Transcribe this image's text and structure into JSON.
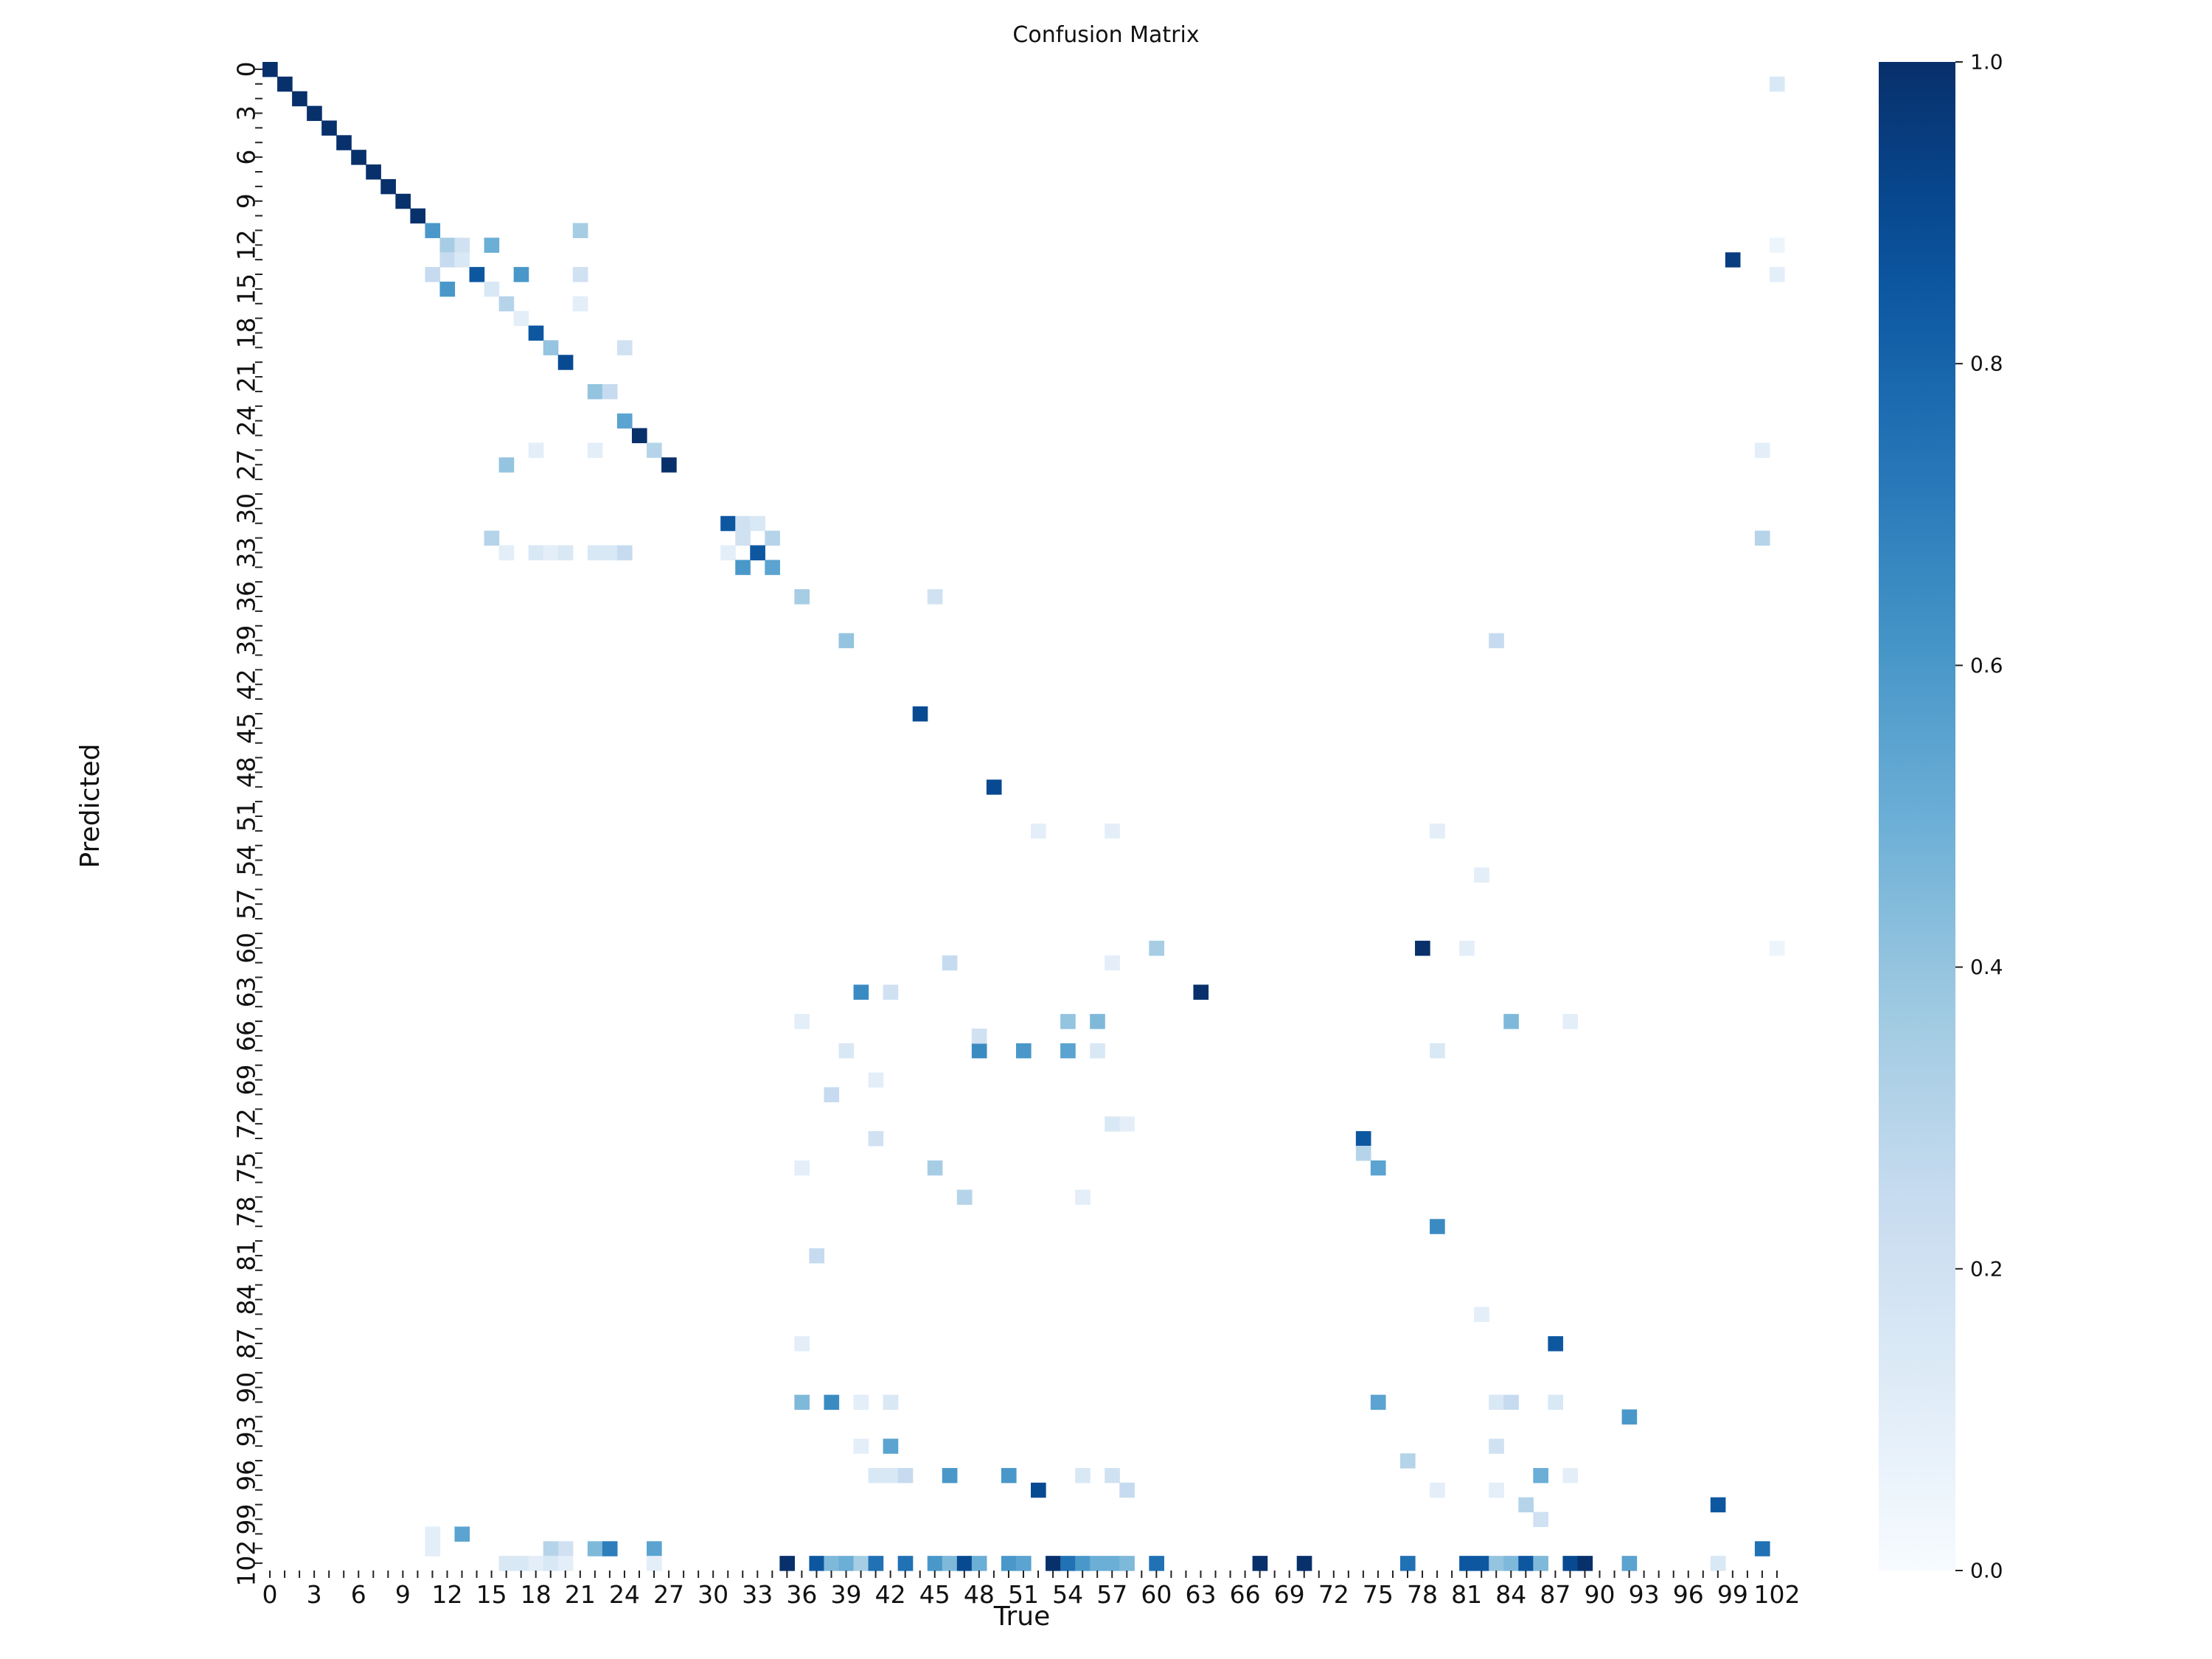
{
  "chart_data": {
    "type": "heatmap",
    "title": "Confusion Matrix",
    "xlabel": "True",
    "ylabel": "Predicted",
    "n": 103,
    "tick_step": 3,
    "x_tick_labels": [
      "0",
      "3",
      "6",
      "9",
      "12",
      "15",
      "18",
      "21",
      "24",
      "27",
      "30",
      "33",
      "36",
      "39",
      "42",
      "45",
      "48",
      "51",
      "54",
      "57",
      "60",
      "63",
      "66",
      "69",
      "72",
      "75",
      "78",
      "81",
      "84",
      "87",
      "90",
      "93",
      "96",
      "99",
      "102"
    ],
    "y_tick_labels": [
      "0",
      "3",
      "6",
      "9",
      "12",
      "15",
      "18",
      "21",
      "24",
      "27",
      "30",
      "33",
      "36",
      "39",
      "42",
      "45",
      "48",
      "51",
      "54",
      "57",
      "60",
      "63",
      "66",
      "69",
      "72",
      "75",
      "78",
      "81",
      "84",
      "87",
      "90",
      "93",
      "96",
      "99",
      "102"
    ],
    "colorbar": {
      "min": 0.0,
      "max": 1.0,
      "ticks": [
        "0.0",
        "0.2",
        "0.4",
        "0.6",
        "0.8",
        "1.0"
      ],
      "colormap": "Blues",
      "low_color": "#f7fbff",
      "high_color": "#08306b"
    },
    "cells": [
      [
        0,
        0,
        1.0
      ],
      [
        1,
        1,
        1.0
      ],
      [
        2,
        2,
        1.0
      ],
      [
        3,
        3,
        1.0
      ],
      [
        4,
        4,
        1.0
      ],
      [
        5,
        5,
        1.0
      ],
      [
        6,
        6,
        1.0
      ],
      [
        7,
        7,
        1.0
      ],
      [
        8,
        8,
        1.0
      ],
      [
        9,
        9,
        1.0
      ],
      [
        10,
        10,
        1.0
      ],
      [
        11,
        11,
        0.6
      ],
      [
        12,
        12,
        0.35
      ],
      [
        12,
        13,
        0.2
      ],
      [
        12,
        15,
        0.5
      ],
      [
        13,
        12,
        0.25
      ],
      [
        13,
        13,
        0.15
      ],
      [
        14,
        11,
        0.25
      ],
      [
        14,
        14,
        0.85
      ],
      [
        14,
        17,
        0.6
      ],
      [
        15,
        12,
        0.6
      ],
      [
        15,
        15,
        0.15
      ],
      [
        16,
        16,
        0.3
      ],
      [
        17,
        17,
        0.1
      ],
      [
        18,
        18,
        0.85
      ],
      [
        19,
        19,
        0.4
      ],
      [
        20,
        20,
        0.9
      ],
      [
        11,
        21,
        0.35
      ],
      [
        14,
        21,
        0.2
      ],
      [
        16,
        21,
        0.1
      ],
      [
        19,
        24,
        0.2
      ],
      [
        22,
        22,
        0.4
      ],
      [
        22,
        23,
        0.25
      ],
      [
        24,
        24,
        0.55
      ],
      [
        25,
        25,
        1.0
      ],
      [
        26,
        26,
        0.3
      ],
      [
        27,
        27,
        1.0
      ],
      [
        27,
        16,
        0.4
      ],
      [
        26,
        22,
        0.1
      ],
      [
        26,
        18,
        0.1
      ],
      [
        31,
        31,
        0.85
      ],
      [
        31,
        32,
        0.2
      ],
      [
        31,
        33,
        0.15
      ],
      [
        32,
        32,
        0.2
      ],
      [
        32,
        34,
        0.3
      ],
      [
        33,
        33,
        0.85
      ],
      [
        33,
        31,
        0.1
      ],
      [
        34,
        32,
        0.6
      ],
      [
        34,
        34,
        0.55
      ],
      [
        32,
        15,
        0.3
      ],
      [
        33,
        16,
        0.1
      ],
      [
        33,
        18,
        0.15
      ],
      [
        33,
        19,
        0.1
      ],
      [
        33,
        20,
        0.15
      ],
      [
        33,
        22,
        0.15
      ],
      [
        33,
        23,
        0.15
      ],
      [
        33,
        24,
        0.25
      ],
      [
        36,
        36,
        0.35
      ],
      [
        36,
        45,
        0.2
      ],
      [
        39,
        39,
        0.4
      ],
      [
        39,
        83,
        0.25
      ],
      [
        44,
        44,
        0.9
      ],
      [
        49,
        49,
        0.9
      ],
      [
        52,
        52,
        0.1
      ],
      [
        52,
        57,
        0.1
      ],
      [
        52,
        79,
        0.1
      ],
      [
        55,
        82,
        0.1
      ],
      [
        60,
        60,
        0.35
      ],
      [
        60,
        78,
        1.0
      ],
      [
        60,
        81,
        0.1
      ],
      [
        61,
        46,
        0.25
      ],
      [
        61,
        57,
        0.1
      ],
      [
        63,
        40,
        0.65
      ],
      [
        63,
        42,
        0.2
      ],
      [
        63,
        63,
        1.0
      ],
      [
        65,
        54,
        0.4
      ],
      [
        65,
        56,
        0.45
      ],
      [
        65,
        84,
        0.45
      ],
      [
        65,
        88,
        0.1
      ],
      [
        65,
        36,
        0.1
      ],
      [
        67,
        48,
        0.65
      ],
      [
        67,
        51,
        0.6
      ],
      [
        67,
        54,
        0.55
      ],
      [
        67,
        56,
        0.15
      ],
      [
        67,
        39,
        0.15
      ],
      [
        67,
        79,
        0.15
      ],
      [
        66,
        48,
        0.2
      ],
      [
        69,
        41,
        0.1
      ],
      [
        70,
        38,
        0.25
      ],
      [
        72,
        57,
        0.15
      ],
      [
        72,
        58,
        0.1
      ],
      [
        73,
        41,
        0.2
      ],
      [
        73,
        74,
        0.85
      ],
      [
        74,
        74,
        0.3
      ],
      [
        75,
        75,
        0.55
      ],
      [
        75,
        45,
        0.35
      ],
      [
        75,
        36,
        0.1
      ],
      [
        77,
        47,
        0.3
      ],
      [
        77,
        55,
        0.1
      ],
      [
        79,
        79,
        0.65
      ],
      [
        81,
        37,
        0.25
      ],
      [
        85,
        82,
        0.1
      ],
      [
        87,
        87,
        0.85
      ],
      [
        87,
        36,
        0.1
      ],
      [
        91,
        36,
        0.45
      ],
      [
        91,
        38,
        0.65
      ],
      [
        91,
        40,
        0.1
      ],
      [
        91,
        42,
        0.15
      ],
      [
        91,
        75,
        0.55
      ],
      [
        91,
        83,
        0.15
      ],
      [
        91,
        84,
        0.25
      ],
      [
        91,
        87,
        0.15
      ],
      [
        92,
        92,
        0.6
      ],
      [
        94,
        42,
        0.55
      ],
      [
        94,
        40,
        0.1
      ],
      [
        94,
        83,
        0.2
      ],
      [
        95,
        77,
        0.3
      ],
      [
        96,
        41,
        0.15
      ],
      [
        96,
        42,
        0.15
      ],
      [
        96,
        43,
        0.25
      ],
      [
        96,
        46,
        0.6
      ],
      [
        96,
        50,
        0.6
      ],
      [
        96,
        55,
        0.15
      ],
      [
        96,
        57,
        0.2
      ],
      [
        96,
        86,
        0.5
      ],
      [
        96,
        88,
        0.1
      ],
      [
        97,
        52,
        0.9
      ],
      [
        97,
        58,
        0.25
      ],
      [
        97,
        79,
        0.1
      ],
      [
        97,
        83,
        0.1
      ],
      [
        98,
        85,
        0.3
      ],
      [
        98,
        98,
        0.85
      ],
      [
        99,
        86,
        0.2
      ],
      [
        100,
        13,
        0.55
      ],
      [
        100,
        11,
        0.1
      ],
      [
        101,
        11,
        0.1
      ],
      [
        101,
        20,
        0.2
      ],
      [
        101,
        22,
        0.45
      ],
      [
        101,
        23,
        0.7
      ],
      [
        101,
        26,
        0.55
      ],
      [
        101,
        19,
        0.3
      ],
      [
        101,
        101,
        0.75
      ],
      [
        102,
        35,
        1.0
      ],
      [
        102,
        37,
        0.85
      ],
      [
        102,
        38,
        0.45
      ],
      [
        102,
        39,
        0.5
      ],
      [
        102,
        40,
        0.35
      ],
      [
        102,
        41,
        0.75
      ],
      [
        102,
        43,
        0.75
      ],
      [
        102,
        45,
        0.6
      ],
      [
        102,
        46,
        0.45
      ],
      [
        102,
        47,
        0.9
      ],
      [
        102,
        48,
        0.5
      ],
      [
        102,
        50,
        0.6
      ],
      [
        102,
        51,
        0.55
      ],
      [
        102,
        53,
        1.0
      ],
      [
        102,
        54,
        0.75
      ],
      [
        102,
        55,
        0.6
      ],
      [
        102,
        56,
        0.5
      ],
      [
        102,
        57,
        0.5
      ],
      [
        102,
        58,
        0.45
      ],
      [
        102,
        60,
        0.75
      ],
      [
        102,
        67,
        1.0
      ],
      [
        102,
        70,
        1.0
      ],
      [
        102,
        77,
        0.75
      ],
      [
        102,
        81,
        0.85
      ],
      [
        102,
        82,
        0.85
      ],
      [
        102,
        83,
        0.4
      ],
      [
        102,
        84,
        0.45
      ],
      [
        102,
        85,
        0.85
      ],
      [
        102,
        86,
        0.45
      ],
      [
        102,
        88,
        0.9
      ],
      [
        102,
        89,
        1.0
      ],
      [
        102,
        92,
        0.55
      ],
      [
        102,
        16,
        0.15
      ],
      [
        102,
        17,
        0.15
      ],
      [
        102,
        18,
        0.1
      ],
      [
        102,
        19,
        0.15
      ],
      [
        102,
        20,
        0.1
      ],
      [
        102,
        26,
        0.1
      ],
      [
        102,
        98,
        0.15
      ],
      [
        13,
        99,
        0.95
      ],
      [
        1,
        102,
        0.15
      ],
      [
        26,
        101,
        0.1
      ],
      [
        32,
        101,
        0.3
      ],
      [
        60,
        102,
        0.05
      ],
      [
        12,
        102,
        0.05
      ],
      [
        14,
        102,
        0.1
      ]
    ]
  }
}
